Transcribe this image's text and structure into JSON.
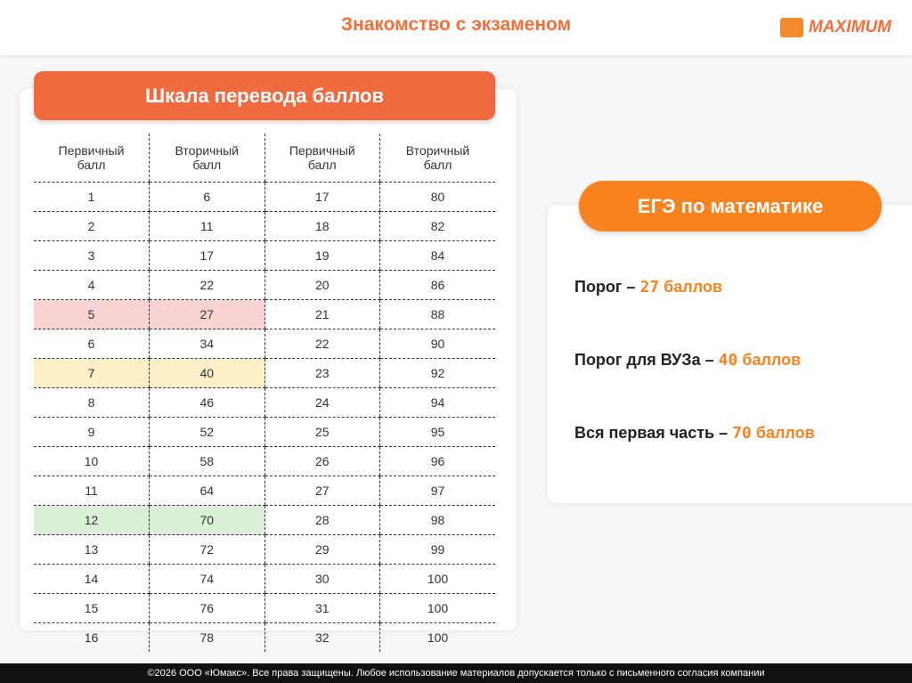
{
  "header": {
    "title": "Знакомство с экзаменом",
    "logo": "MAXIMUM"
  },
  "table": {
    "title": "Шкала перевода баллов",
    "headers": [
      "Первичный балл",
      "Вторичный балл",
      "Первичный балл",
      "Вторичный балл"
    ],
    "rows": [
      [
        1,
        6,
        17,
        80
      ],
      [
        2,
        11,
        18,
        82
      ],
      [
        3,
        17,
        19,
        84
      ],
      [
        4,
        22,
        20,
        86
      ],
      [
        5,
        27,
        21,
        88
      ],
      [
        6,
        34,
        22,
        90
      ],
      [
        7,
        40,
        23,
        92
      ],
      [
        8,
        46,
        24,
        94
      ],
      [
        9,
        52,
        25,
        95
      ],
      [
        10,
        58,
        26,
        96
      ],
      [
        11,
        64,
        27,
        97
      ],
      [
        12,
        70,
        28,
        98
      ],
      [
        13,
        72,
        29,
        99
      ],
      [
        14,
        74,
        30,
        100
      ],
      [
        15,
        76,
        31,
        100
      ],
      [
        16,
        78,
        32,
        100
      ]
    ],
    "highlights": [
      {
        "row": 4,
        "color": "#f9d3d3"
      },
      {
        "row": 6,
        "color": "#fbefc8"
      },
      {
        "row": 11,
        "color": "#dcefd8"
      }
    ]
  },
  "info": {
    "title": "ЕГЭ по математике",
    "items": [
      {
        "label": "Порог –",
        "value": "27",
        "unit": "баллов"
      },
      {
        "label": "Порог для ВУЗа –",
        "value": "40",
        "unit": "баллов"
      },
      {
        "label": "Вся первая часть –",
        "value": "70",
        "unit": "баллов"
      }
    ]
  },
  "footer": "©2026 ООО «Юмакс». Все права защищены. Любое использование материалов допускается только с письменного согласия компании"
}
